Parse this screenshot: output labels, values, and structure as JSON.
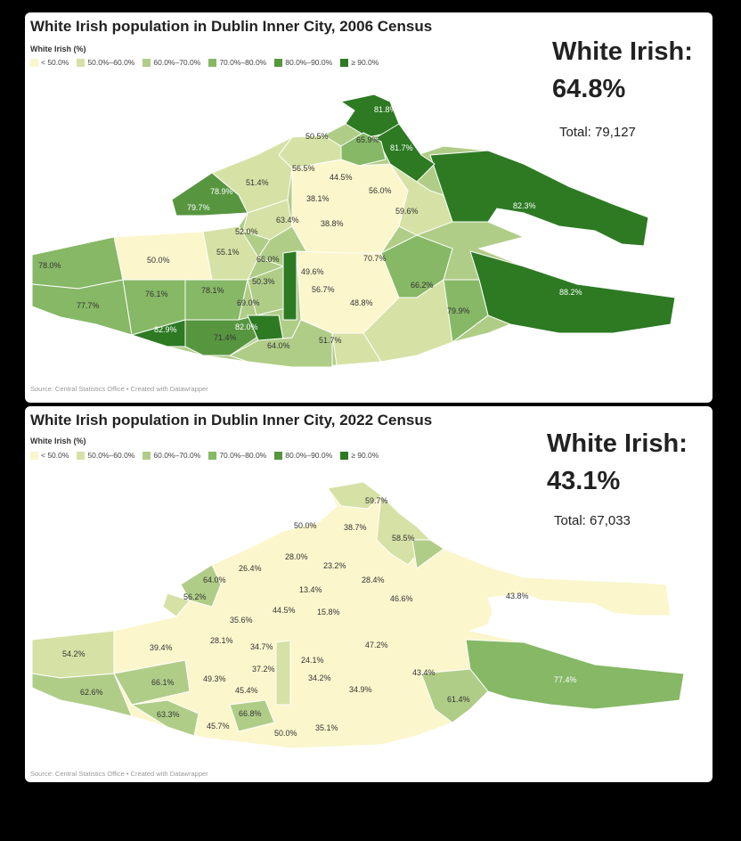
{
  "colors": {
    "b1": "#fbf6cc",
    "b2": "#d6e1a5",
    "b3": "#b0cd88",
    "b4": "#86b866",
    "b5": "#57963f",
    "b6": "#2d7a23"
  },
  "legend": {
    "title": "White Irish (%)",
    "items": [
      "< 50.0%",
      "50.0%–60.0%",
      "60.0%–70.0%",
      "70.0%–80.0%",
      "80.0%–90.0%",
      "≥ 90.0%"
    ]
  },
  "source": "Source: Central Statistics Office • Created with Datawrapper",
  "maps": [
    {
      "title": "White Irish population in Dublin Inner City, 2006 Census",
      "stat_label": "White Irish:",
      "stat_value": "64.8%",
      "total": "Total: 79,127",
      "labels": [
        "81.8%",
        "50.5%",
        "65.9%",
        "81.7%",
        "56.5%",
        "44.5%",
        "51.4%",
        "78.9%",
        "38.1%",
        "56.0%",
        "79.7%",
        "63.4%",
        "38.8%",
        "59.6%",
        "82.3%",
        "52.0%",
        "55.1%",
        "66.0%",
        "50.0%",
        "78.0%",
        "70.7%",
        "49.6%",
        "50.3%",
        "76.1%",
        "78.1%",
        "56.7%",
        "66.2%",
        "88.2%",
        "77.7%",
        "69.0%",
        "48.8%",
        "79.9%",
        "82.0%",
        "82.9%",
        "71.4%",
        "64.0%",
        "51.7%"
      ]
    },
    {
      "title": "White Irish population in Dublin Inner City, 2022 Census",
      "stat_label": "White Irish:",
      "stat_value": "43.1%",
      "total": "Total: 67,033",
      "labels": [
        "59.7%",
        "50.0%",
        "38.7%",
        "58.5%",
        "28.0%",
        "23.2%",
        "26.4%",
        "64.0%",
        "28.4%",
        "13.4%",
        "46.6%",
        "43.8%",
        "56.2%",
        "44.5%",
        "15.8%",
        "35.6%",
        "54.2%",
        "39.4%",
        "28.1%",
        "34.7%",
        "47.2%",
        "24.1%",
        "37.2%",
        "43.4%",
        "77.4%",
        "66.1%",
        "49.3%",
        "34.2%",
        "62.6%",
        "45.4%",
        "34.9%",
        "61.4%",
        "63.3%",
        "66.8%",
        "45.7%",
        "50.0%",
        "35.1%"
      ]
    }
  ]
}
